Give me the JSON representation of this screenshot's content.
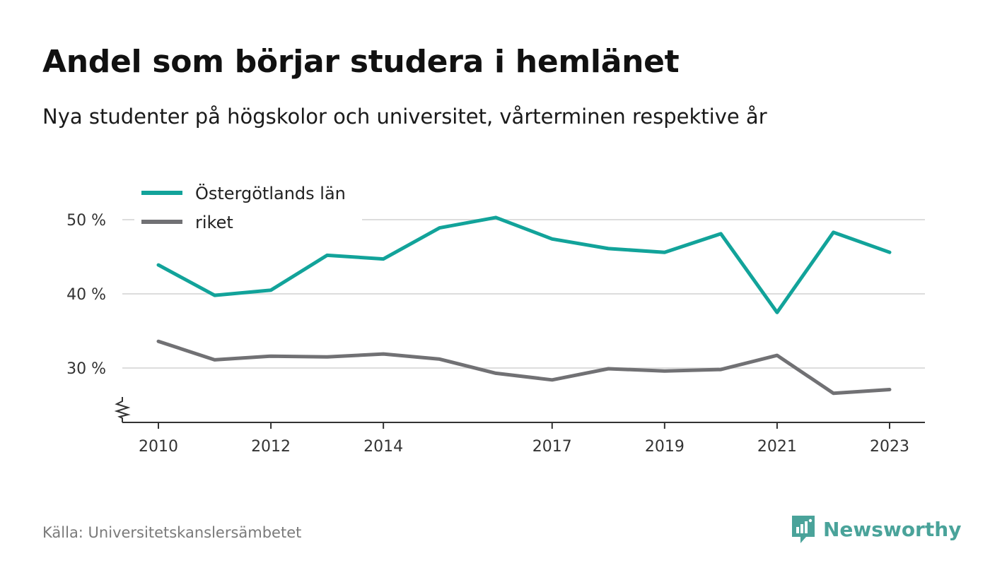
{
  "title": "Andel som börjar studera i hemlänet",
  "subtitle": "Nya studenter på högskolor och universitet, vårterminen respektive år",
  "source": "Källa: Universitetskanslersämbetet",
  "brand": "Newsworthy",
  "colors": {
    "series1": "#12a39a",
    "series2": "#717174",
    "grid": "#dddddd",
    "axis": "#333333",
    "brand": "#4aa39a"
  },
  "chart_data": {
    "type": "line",
    "x": [
      2010,
      2011,
      2012,
      2013,
      2014,
      2015,
      2016,
      2017,
      2018,
      2019,
      2020,
      2021,
      2022,
      2023
    ],
    "x_tick_values": [
      2010,
      2012,
      2014,
      2017,
      2019,
      2021,
      2023
    ],
    "x_tick_labels": [
      "2010",
      "2012",
      "2014",
      "2017",
      "2019",
      "2021",
      "2023"
    ],
    "y_tick_values": [
      30,
      40,
      50
    ],
    "y_tick_labels": [
      "30 %",
      "40 %",
      "50 %"
    ],
    "ylim": [
      22.5,
      52.5
    ],
    "y_axis_break": true,
    "grid": true,
    "legend_position": "top-left",
    "series": [
      {
        "name": "Östergötlands län",
        "values": [
          43.9,
          39.8,
          40.5,
          45.2,
          44.7,
          48.9,
          50.3,
          47.4,
          46.1,
          45.6,
          48.1,
          37.5,
          48.3,
          45.6
        ]
      },
      {
        "name": "riket",
        "values": [
          33.6,
          31.1,
          31.6,
          31.5,
          31.9,
          31.2,
          29.3,
          28.4,
          29.9,
          29.6,
          29.8,
          31.7,
          26.6,
          27.1
        ]
      }
    ]
  }
}
